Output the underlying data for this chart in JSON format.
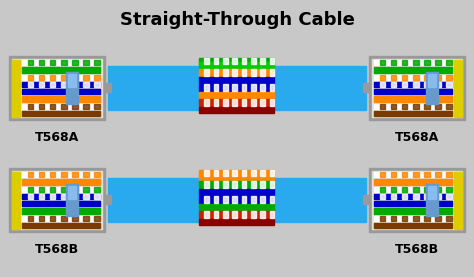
{
  "title": "Straight-Through Cable",
  "bg_color": "#c8c8c8",
  "cable_color": "#29aaee",
  "top_label_left": "T568A",
  "top_label_right": "T568A",
  "bot_label_left": "T568B",
  "bot_label_right": "T568B",
  "fig_w": 4.74,
  "fig_h": 2.77,
  "dpi": 100,
  "t568a_wires": [
    {
      "base": "#ffffff",
      "stripe": "#00aa00"
    },
    {
      "base": "#00aa00",
      "stripe": null
    },
    {
      "base": "#ffffff",
      "stripe": "#ff8800"
    },
    {
      "base": "#0000cc",
      "stripe": "#ffffff"
    },
    {
      "base": "#0000cc",
      "stripe": null
    },
    {
      "base": "#ff8800",
      "stripe": null
    },
    {
      "base": "#ffffff",
      "stripe": "#7B3B00"
    },
    {
      "base": "#7B3B00",
      "stripe": null
    }
  ],
  "t568b_wires": [
    {
      "base": "#ffffff",
      "stripe": "#ff8800"
    },
    {
      "base": "#ff8800",
      "stripe": null
    },
    {
      "base": "#ffffff",
      "stripe": "#00aa00"
    },
    {
      "base": "#0000cc",
      "stripe": "#ffffff"
    },
    {
      "base": "#0000cc",
      "stripe": null
    },
    {
      "base": "#00aa00",
      "stripe": null
    },
    {
      "base": "#ffffff",
      "stripe": "#7B3B00"
    },
    {
      "base": "#7B3B00",
      "stripe": null
    }
  ],
  "center_top_wires": [
    {
      "base": "#00aa00",
      "stripe": "#ffffff",
      "above_cable": true
    },
    {
      "base": "#00cc00",
      "stripe": null,
      "above_cable": false
    },
    {
      "base": "#ff8800",
      "stripe": "#ffffff",
      "above_cable": false
    },
    {
      "base": "#0000cc",
      "stripe": null,
      "above_cable": false
    },
    {
      "base": "#0000cc",
      "stripe": "#ffffff",
      "above_cable": false
    },
    {
      "base": "#ff8800",
      "stripe": null,
      "above_cable": false
    },
    {
      "base": "#cc2200",
      "stripe": "#ffffff",
      "above_cable": false
    },
    {
      "base": "#880000",
      "stripe": null,
      "above_cable": false
    }
  ],
  "center_bot_wires": [
    {
      "base": "#ff8800",
      "stripe": "#ffffff",
      "above_cable": true
    },
    {
      "base": "#ff8800",
      "stripe": null,
      "above_cable": false
    },
    {
      "base": "#00aa00",
      "stripe": "#ffffff",
      "above_cable": false
    },
    {
      "base": "#0000cc",
      "stripe": null,
      "above_cable": false
    },
    {
      "base": "#0000cc",
      "stripe": "#ffffff",
      "above_cable": false
    },
    {
      "base": "#00aa00",
      "stripe": null,
      "above_cable": false
    },
    {
      "base": "#cc2200",
      "stripe": "#ffffff",
      "above_cable": false
    },
    {
      "base": "#880000",
      "stripe": null,
      "above_cable": false
    }
  ],
  "connector_outline": "#888888",
  "connector_body": "#e0e0d8",
  "connector_clip": "#6699cc",
  "connector_outer": "#999999",
  "yellow_pins": "#ddcc00",
  "wire_label_color": "#333333"
}
